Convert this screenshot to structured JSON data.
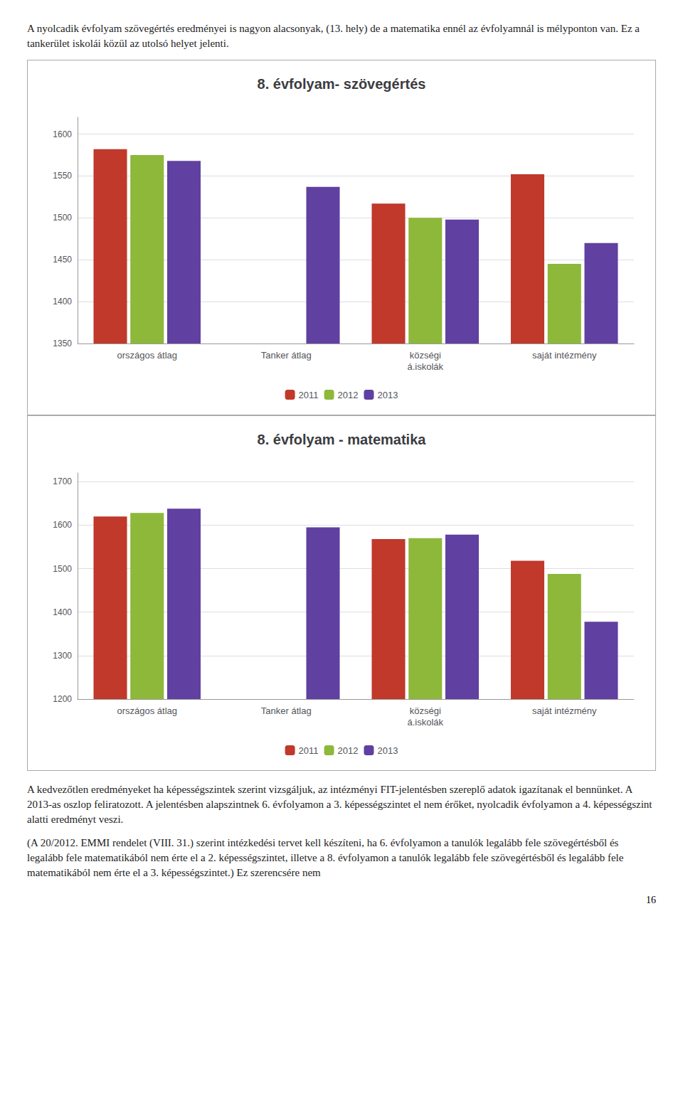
{
  "chart_data": [
    {
      "type": "bar",
      "title": "8. évfolyam- szövegértés",
      "categories": [
        "országos átlag",
        "Tanker átlag",
        "községi\ná.iskolák",
        "saját intézmény"
      ],
      "series": [
        {
          "name": "2011",
          "color": "#C0392B",
          "values": [
            1582,
            null,
            1517,
            1552
          ]
        },
        {
          "name": "2012",
          "color": "#8DB83A",
          "values": [
            1575,
            null,
            1500,
            1445
          ]
        },
        {
          "name": "2013",
          "color": "#6040A0",
          "values": [
            1568,
            1537,
            1498,
            1470
          ]
        }
      ],
      "ylim": [
        1350,
        1620
      ],
      "yticks": [
        1350,
        1400,
        1450,
        1500,
        1550,
        1600
      ],
      "grid": true,
      "legend": "bottom",
      "annotations": [
        "A nyolcadik évfolyam szövegértés eredményei is nagyon alacsonyak, (13. hely) de a matematika ennél az évfolyamnál is mélyponton van. Ez a tankerület iskolái közül az utolsó helyet jelenti."
      ]
    },
    {
      "type": "bar",
      "title": "8. évfolyam - matematika",
      "categories": [
        "országos átlag",
        "Tanker átlag",
        "községi\ná.iskolák",
        "saját intézmény"
      ],
      "series": [
        {
          "name": "2011",
          "color": "#C0392B",
          "values": [
            1620,
            null,
            1568,
            1518
          ]
        },
        {
          "name": "2012",
          "color": "#8DB83A",
          "values": [
            1628,
            null,
            1570,
            1488
          ]
        },
        {
          "name": "2013",
          "color": "#6040A0",
          "values": [
            1638,
            1595,
            1578,
            1378
          ]
        }
      ],
      "ylim": [
        1200,
        1720
      ],
      "yticks": [
        1200,
        1300,
        1400,
        1500,
        1600,
        1700
      ],
      "grid": true,
      "legend": "bottom",
      "annotations": [
        "A kedvezőtlen eredményeket ha képességszintek szerint vizsgáljuk, az intézményi FIT-jelentésben szereplő adatok igazítanak el bennünket. A 2013-as oszlop feliratozott. A jelentésben alapszintnek 6. évfolyamon a 3. képességszintet el nem érőket, nyolcadik évfolyamon a 4. képességszint alatti eredményt veszi.",
        "(A 20/2012. EMMI rendelet (VIII. 31.) szerint intézkedési tervet kell készíteni, ha 6. évfolyamon a tanulók legalább fele szövegértésből és legalább fele matematikából nem érte el a 2. képességszintet, illetve a 8. évfolyamon a tanulók legalább fele szövegértésből és legalább fele matematikából nem érte el a 3. képességszintet.) Ez szerencsére nem",
        "16"
      ]
    }
  ]
}
